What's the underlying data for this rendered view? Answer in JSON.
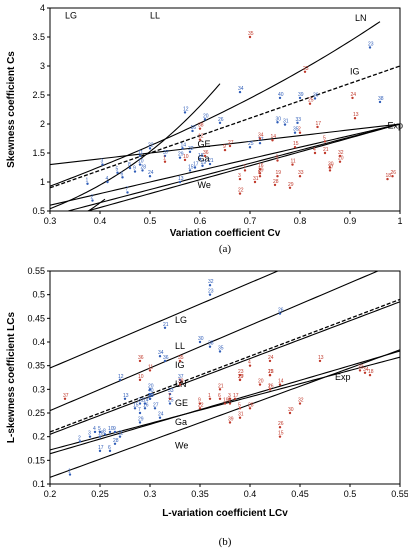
{
  "chart_data": [
    {
      "type": "scatter",
      "title": "",
      "caption": "(a)",
      "xlabel": "Variation coefficient Cv",
      "ylabel": "Skewness coefficient Cs",
      "xlim": [
        0.3,
        1.0
      ],
      "ylim": [
        0.5,
        4.0
      ],
      "xticks": [
        "0.3",
        "0.4",
        "0.5",
        "0.6",
        "0.7",
        "0.8",
        "0.9",
        "1"
      ],
      "yticks": [
        "0.5",
        "1",
        "1.5",
        "2",
        "2.5",
        "3",
        "3.5",
        "4"
      ],
      "grid": false,
      "colors": {
        "blue": "#2f5db8",
        "red": "#c0392b"
      },
      "curve_labels": [
        "LG",
        "LL",
        "LN",
        "IG",
        "Exp",
        "GE",
        "Ga",
        "We"
      ],
      "series": [
        {
          "group": "blue",
          "points": [
            {
              "label": "1",
              "x": 0.375,
              "y": 0.97
            },
            {
              "label": "2",
              "x": 0.385,
              "y": 0.68
            },
            {
              "label": "3",
              "x": 0.405,
              "y": 1.3
            },
            {
              "label": "4",
              "x": 0.415,
              "y": 1.0
            },
            {
              "label": "5",
              "x": 0.435,
              "y": 1.16
            },
            {
              "label": "6",
              "x": 0.445,
              "y": 1.08
            },
            {
              "label": "7",
              "x": 0.455,
              "y": 0.82
            },
            {
              "label": "8",
              "x": 0.46,
              "y": 1.24
            },
            {
              "label": "9",
              "x": 0.47,
              "y": 1.18
            },
            {
              "label": "10",
              "x": 0.48,
              "y": 1.3
            },
            {
              "label": "11",
              "x": 0.48,
              "y": 1.45
            },
            {
              "label": "12",
              "x": 0.57,
              "y": 2.2
            },
            {
              "label": "13",
              "x": 0.56,
              "y": 1.0
            },
            {
              "label": "14",
              "x": 0.565,
              "y": 1.58
            },
            {
              "label": "15",
              "x": 0.58,
              "y": 1.2
            },
            {
              "label": "16",
              "x": 0.585,
              "y": 1.88
            },
            {
              "label": "17",
              "x": 0.59,
              "y": 1.25
            },
            {
              "label": "18",
              "x": 0.6,
              "y": 1.4
            },
            {
              "label": "19",
              "x": 0.605,
              "y": 1.28
            },
            {
              "label": "20",
              "x": 0.61,
              "y": 2.08
            },
            {
              "label": "21",
              "x": 0.62,
              "y": 1.31
            },
            {
              "label": "22",
              "x": 0.5,
              "y": 1.58
            },
            {
              "label": "23",
              "x": 0.94,
              "y": 3.32
            },
            {
              "label": "24",
              "x": 0.5,
              "y": 1.1
            },
            {
              "label": "25",
              "x": 0.7,
              "y": 1.6
            },
            {
              "label": "26",
              "x": 0.64,
              "y": 2.02
            },
            {
              "label": "27",
              "x": 0.72,
              "y": 1.67
            },
            {
              "label": "28",
              "x": 0.485,
              "y": 1.2
            },
            {
              "label": "29",
              "x": 0.56,
              "y": 1.42
            },
            {
              "label": "30",
              "x": 0.755,
              "y": 2.03
            },
            {
              "label": "31",
              "x": 0.77,
              "y": 1.99
            },
            {
              "label": "32",
              "x": 0.58,
              "y": 1.52
            },
            {
              "label": "33",
              "x": 0.795,
              "y": 2.02
            },
            {
              "label": "34",
              "x": 0.68,
              "y": 2.55
            },
            {
              "label": "35",
              "x": 0.79,
              "y": 1.85
            },
            {
              "label": "36",
              "x": 0.83,
              "y": 2.44
            },
            {
              "label": "37",
              "x": 0.53,
              "y": 1.45
            },
            {
              "label": "38",
              "x": 0.96,
              "y": 2.38
            },
            {
              "label": "39",
              "x": 0.8,
              "y": 2.45
            },
            {
              "label": "40",
              "x": 0.76,
              "y": 2.45
            }
          ]
        },
        {
          "group": "red",
          "points": [
            {
              "label": "1",
              "x": 0.53,
              "y": 1.35
            },
            {
              "label": "2",
              "x": 0.8,
              "y": 1.85
            },
            {
              "label": "3",
              "x": 0.68,
              "y": 1.05
            },
            {
              "label": "4",
              "x": 0.83,
              "y": 1.5
            },
            {
              "label": "5",
              "x": 0.85,
              "y": 1.7
            },
            {
              "label": "6",
              "x": 0.755,
              "y": 1.37
            },
            {
              "label": "7",
              "x": 0.69,
              "y": 1.2
            },
            {
              "label": "8",
              "x": 0.72,
              "y": 1.1
            },
            {
              "label": "9",
              "x": 0.65,
              "y": 1.55
            },
            {
              "label": "10",
              "x": 0.57,
              "y": 1.38
            },
            {
              "label": "11",
              "x": 0.785,
              "y": 1.3
            },
            {
              "label": "12",
              "x": 0.6,
              "y": 1.73
            },
            {
              "label": "13",
              "x": 0.91,
              "y": 2.1
            },
            {
              "label": "14",
              "x": 0.745,
              "y": 1.72
            },
            {
              "label": "15",
              "x": 0.79,
              "y": 1.6
            },
            {
              "label": "16",
              "x": 0.72,
              "y": 1.22
            },
            {
              "label": "17",
              "x": 0.835,
              "y": 1.95
            },
            {
              "label": "18",
              "x": 0.975,
              "y": 1.05
            },
            {
              "label": "19",
              "x": 0.755,
              "y": 1.1
            },
            {
              "label": "20",
              "x": 0.88,
              "y": 1.35
            },
            {
              "label": "21",
              "x": 0.85,
              "y": 1.5
            },
            {
              "label": "22",
              "x": 0.68,
              "y": 0.8
            },
            {
              "label": "23",
              "x": 0.81,
              "y": 2.9
            },
            {
              "label": "24",
              "x": 0.905,
              "y": 2.45
            },
            {
              "label": "25",
              "x": 0.82,
              "y": 2.35
            },
            {
              "label": "26",
              "x": 0.985,
              "y": 1.1
            },
            {
              "label": "27",
              "x": 0.66,
              "y": 1.62
            },
            {
              "label": "28",
              "x": 0.75,
              "y": 0.95
            },
            {
              "label": "29",
              "x": 0.78,
              "y": 0.9
            },
            {
              "label": "30",
              "x": 0.86,
              "y": 1.25
            },
            {
              "label": "31",
              "x": 0.71,
              "y": 1.0
            },
            {
              "label": "32",
              "x": 0.88,
              "y": 1.45
            },
            {
              "label": "33",
              "x": 0.8,
              "y": 1.1
            },
            {
              "label": "34",
              "x": 0.72,
              "y": 1.75
            },
            {
              "label": "35",
              "x": 0.7,
              "y": 3.5
            },
            {
              "label": "36",
              "x": 0.61,
              "y": 1.45
            },
            {
              "label": "37",
              "x": 0.86,
              "y": 1.2
            },
            {
              "label": "38",
              "x": 0.6,
              "y": 1.92
            },
            {
              "label": "39",
              "x": 0.72,
              "y": 1.15
            }
          ]
        }
      ]
    },
    {
      "type": "scatter",
      "title": "",
      "caption": "(b)",
      "xlabel": "L-variation coefficient LCv",
      "ylabel": "L-skewness coefficient LCs",
      "xlim": [
        0.2,
        0.55
      ],
      "ylim": [
        0.1,
        0.55
      ],
      "xticks": [
        "0.2",
        "0.25",
        "0.3",
        "0.35",
        "0.4",
        "0.45",
        "0.5",
        "0.55"
      ],
      "yticks": [
        "0.1",
        "0.15",
        "0.2",
        "0.25",
        "0.3",
        "0.35",
        "0.4",
        "0.45",
        "0.5",
        "0.55"
      ],
      "grid": false,
      "colors": {
        "blue": "#2f5db8",
        "red": "#c0392b"
      },
      "curve_labels": [
        "LG",
        "LL",
        "IG",
        "LN",
        "Exp",
        "GE",
        "Ga",
        "We"
      ],
      "series": [
        {
          "group": "blue",
          "points": [
            {
              "label": "1",
              "x": 0.22,
              "y": 0.12
            },
            {
              "label": "2",
              "x": 0.23,
              "y": 0.19
            },
            {
              "label": "3",
              "x": 0.24,
              "y": 0.2
            },
            {
              "label": "4",
              "x": 0.245,
              "y": 0.21
            },
            {
              "label": "5",
              "x": 0.25,
              "y": 0.21
            },
            {
              "label": "6",
              "x": 0.26,
              "y": 0.17
            },
            {
              "label": "7",
              "x": 0.29,
              "y": 0.25
            },
            {
              "label": "8",
              "x": 0.255,
              "y": 0.205
            },
            {
              "label": "9",
              "x": 0.265,
              "y": 0.21
            },
            {
              "label": "10",
              "x": 0.26,
              "y": 0.21
            },
            {
              "label": "11",
              "x": 0.27,
              "y": 0.2
            },
            {
              "label": "12",
              "x": 0.27,
              "y": 0.32
            },
            {
              "label": "13",
              "x": 0.275,
              "y": 0.28
            },
            {
              "label": "14",
              "x": 0.295,
              "y": 0.27
            },
            {
              "label": "15",
              "x": 0.285,
              "y": 0.26
            },
            {
              "label": "16",
              "x": 0.295,
              "y": 0.26
            },
            {
              "label": "17",
              "x": 0.25,
              "y": 0.17
            },
            {
              "label": "18",
              "x": 0.25,
              "y": 0.2
            },
            {
              "label": "19",
              "x": 0.3,
              "y": 0.28
            },
            {
              "label": "20",
              "x": 0.3,
              "y": 0.3
            },
            {
              "label": "21",
              "x": 0.315,
              "y": 0.43
            },
            {
              "label": "22",
              "x": 0.3,
              "y": 0.28
            },
            {
              "label": "23",
              "x": 0.36,
              "y": 0.5
            },
            {
              "label": "24",
              "x": 0.31,
              "y": 0.24
            },
            {
              "label": "25",
              "x": 0.32,
              "y": 0.27
            },
            {
              "label": "26",
              "x": 0.43,
              "y": 0.46
            },
            {
              "label": "27",
              "x": 0.305,
              "y": 0.26
            },
            {
              "label": "28",
              "x": 0.265,
              "y": 0.185
            },
            {
              "label": "29",
              "x": 0.29,
              "y": 0.23
            },
            {
              "label": "30",
              "x": 0.35,
              "y": 0.4
            },
            {
              "label": "31",
              "x": 0.29,
              "y": 0.27
            },
            {
              "label": "32",
              "x": 0.36,
              "y": 0.52
            },
            {
              "label": "33",
              "x": 0.32,
              "y": 0.29
            },
            {
              "label": "34",
              "x": 0.31,
              "y": 0.37
            },
            {
              "label": "35",
              "x": 0.37,
              "y": 0.38
            },
            {
              "label": "36",
              "x": 0.315,
              "y": 0.36
            },
            {
              "label": "37",
              "x": 0.33,
              "y": 0.32
            },
            {
              "label": "38",
              "x": 0.36,
              "y": 0.39
            },
            {
              "label": "39",
              "x": 0.3,
              "y": 0.28
            },
            {
              "label": "40",
              "x": 0.3,
              "y": 0.29
            }
          ]
        },
        {
          "group": "red",
          "points": [
            {
              "label": "1",
              "x": 0.36,
              "y": 0.28
            },
            {
              "label": "2",
              "x": 0.42,
              "y": 0.3
            },
            {
              "label": "3",
              "x": 0.38,
              "y": 0.28
            },
            {
              "label": "4",
              "x": 0.4,
              "y": 0.35
            },
            {
              "label": "5",
              "x": 0.39,
              "y": 0.26
            },
            {
              "label": "6",
              "x": 0.37,
              "y": 0.28
            },
            {
              "label": "7",
              "x": 0.32,
              "y": 0.28
            },
            {
              "label": "8",
              "x": 0.38,
              "y": 0.27
            },
            {
              "label": "9",
              "x": 0.35,
              "y": 0.27
            },
            {
              "label": "10",
              "x": 0.29,
              "y": 0.32
            },
            {
              "label": "11",
              "x": 0.3,
              "y": 0.34
            },
            {
              "label": "12",
              "x": 0.42,
              "y": 0.33
            },
            {
              "label": "13",
              "x": 0.47,
              "y": 0.36
            },
            {
              "label": "14",
              "x": 0.43,
              "y": 0.31
            },
            {
              "label": "15",
              "x": 0.43,
              "y": 0.2
            },
            {
              "label": "16",
              "x": 0.42,
              "y": 0.3
            },
            {
              "label": "17",
              "x": 0.385,
              "y": 0.28
            },
            {
              "label": "18",
              "x": 0.52,
              "y": 0.33
            },
            {
              "label": "19",
              "x": 0.375,
              "y": 0.27
            },
            {
              "label": "20",
              "x": 0.41,
              "y": 0.31
            },
            {
              "label": "21",
              "x": 0.37,
              "y": 0.3
            },
            {
              "label": "22",
              "x": 0.35,
              "y": 0.26
            },
            {
              "label": "23",
              "x": 0.39,
              "y": 0.33
            },
            {
              "label": "24",
              "x": 0.42,
              "y": 0.36
            },
            {
              "label": "25",
              "x": 0.42,
              "y": 0.33
            },
            {
              "label": "26",
              "x": 0.43,
              "y": 0.22
            },
            {
              "label": "27",
              "x": 0.39,
              "y": 0.32
            },
            {
              "label": "28",
              "x": 0.4,
              "y": 0.26
            },
            {
              "label": "29",
              "x": 0.39,
              "y": 0.32
            },
            {
              "label": "30",
              "x": 0.44,
              "y": 0.25
            },
            {
              "label": "31",
              "x": 0.39,
              "y": 0.24
            },
            {
              "label": "32",
              "x": 0.45,
              "y": 0.27
            },
            {
              "label": "33",
              "x": 0.51,
              "y": 0.34
            },
            {
              "label": "34",
              "x": 0.515,
              "y": 0.335
            },
            {
              "label": "35",
              "x": 0.33,
              "y": 0.36
            },
            {
              "label": "36",
              "x": 0.29,
              "y": 0.36
            },
            {
              "label": "37",
              "x": 0.215,
              "y": 0.28
            },
            {
              "label": "38",
              "x": 0.33,
              "y": 0.31
            },
            {
              "label": "39",
              "x": 0.38,
              "y": 0.23
            }
          ]
        }
      ]
    }
  ]
}
